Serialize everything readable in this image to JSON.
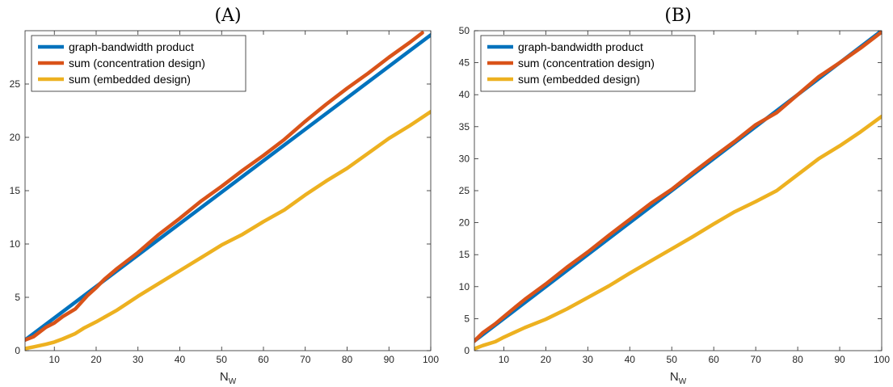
{
  "chart_data": [
    {
      "type": "line",
      "title": "(A)",
      "xlabel": "N",
      "xlabel_sub": "W",
      "ylabel": "",
      "xlim": [
        3,
        100
      ],
      "ylim": [
        0,
        30
      ],
      "xticks": [
        10,
        20,
        30,
        40,
        50,
        60,
        70,
        80,
        90,
        100
      ],
      "yticks": [
        0,
        5,
        10,
        15,
        20,
        25
      ],
      "grid": false,
      "legend_position": "top-left",
      "series": [
        {
          "name": "graph-bandwidth product",
          "color": "#0072BD",
          "x": [
            3,
            100
          ],
          "y": [
            1.0,
            29.6
          ]
        },
        {
          "name": "sum (concentration design)",
          "color": "#D95319",
          "x": [
            3,
            5,
            8,
            10,
            12,
            15,
            18,
            20,
            22,
            25,
            30,
            35,
            40,
            45,
            50,
            55,
            60,
            65,
            70,
            75,
            80,
            85,
            90,
            95,
            98
          ],
          "y": [
            1.0,
            1.3,
            2.2,
            2.6,
            3.2,
            3.9,
            5.2,
            5.9,
            6.7,
            7.7,
            9.2,
            10.9,
            12.4,
            14.0,
            15.4,
            16.9,
            18.3,
            19.8,
            21.5,
            23.1,
            24.6,
            26.0,
            27.5,
            28.9,
            29.8
          ]
        },
        {
          "name": "sum (embedded design)",
          "color": "#EDB120",
          "x": [
            3,
            5,
            8,
            10,
            12,
            15,
            17,
            20,
            25,
            30,
            35,
            40,
            45,
            50,
            55,
            60,
            65,
            70,
            75,
            80,
            85,
            90,
            95,
            100
          ],
          "y": [
            0.2,
            0.35,
            0.6,
            0.8,
            1.1,
            1.6,
            2.1,
            2.7,
            3.8,
            5.1,
            6.3,
            7.5,
            8.7,
            9.9,
            10.9,
            12.1,
            13.2,
            14.6,
            15.9,
            17.1,
            18.5,
            19.9,
            21.1,
            22.4
          ]
        }
      ]
    },
    {
      "type": "line",
      "title": "(B)",
      "xlabel": "N",
      "xlabel_sub": "W",
      "ylabel": "",
      "xlim": [
        3,
        100
      ],
      "ylim": [
        0,
        50
      ],
      "xticks": [
        10,
        20,
        30,
        40,
        50,
        60,
        70,
        80,
        90,
        100
      ],
      "yticks": [
        0,
        5,
        10,
        15,
        20,
        25,
        30,
        35,
        40,
        45,
        50
      ],
      "grid": false,
      "legend_position": "top-left",
      "series": [
        {
          "name": "graph-bandwidth product",
          "color": "#0072BD",
          "x": [
            3,
            100
          ],
          "y": [
            1.5,
            50.0
          ]
        },
        {
          "name": "sum (concentration design)",
          "color": "#D95319",
          "x": [
            3,
            5,
            8,
            10,
            12,
            15,
            20,
            25,
            30,
            35,
            40,
            45,
            50,
            55,
            60,
            65,
            70,
            75,
            80,
            85,
            90,
            95,
            100
          ],
          "y": [
            1.5,
            2.8,
            4.2,
            5.3,
            6.4,
            8.0,
            10.4,
            13.0,
            15.4,
            18.0,
            20.5,
            23.0,
            25.2,
            27.8,
            30.3,
            32.7,
            35.3,
            37.2,
            40.0,
            42.8,
            45.0,
            47.3,
            49.8
          ]
        },
        {
          "name": "sum (embedded design)",
          "color": "#EDB120",
          "x": [
            3,
            5,
            8,
            10,
            15,
            20,
            25,
            30,
            35,
            40,
            45,
            50,
            55,
            60,
            65,
            70,
            75,
            80,
            85,
            90,
            95,
            100
          ],
          "y": [
            0.3,
            0.8,
            1.4,
            2.1,
            3.6,
            4.9,
            6.5,
            8.3,
            10.1,
            12.1,
            14.0,
            15.9,
            17.8,
            19.8,
            21.7,
            23.3,
            25.0,
            27.5,
            30.0,
            32.0,
            34.2,
            36.6
          ]
        }
      ]
    }
  ]
}
